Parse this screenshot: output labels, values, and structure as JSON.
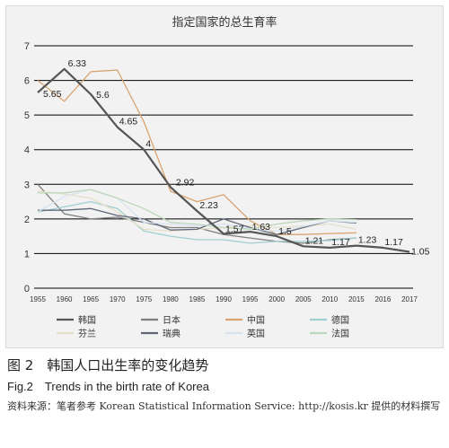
{
  "chart_data": {
    "type": "line",
    "title": "指定国家的总生育率",
    "xlabel": "",
    "ylabel": "",
    "categories": [
      "1955",
      "1960",
      "1965",
      "1970",
      "1975",
      "1980",
      "1985",
      "1990",
      "1995",
      "2000",
      "2005",
      "2010",
      "2015",
      "2016",
      "2017"
    ],
    "ylim": [
      0,
      7
    ],
    "yticks": [
      0,
      1,
      2,
      3,
      4,
      5,
      6,
      7
    ],
    "grid": true,
    "legend_position": "bottom",
    "series": [
      {
        "name": "韩国",
        "color": "#555555",
        "width": 2.2,
        "values": [
          5.65,
          6.33,
          5.6,
          4.65,
          4.0,
          2.92,
          2.23,
          1.57,
          1.63,
          1.5,
          1.21,
          1.17,
          1.23,
          1.17,
          1.05
        ],
        "labels": [
          "5.65",
          "6.33",
          "5.6",
          "4.65",
          "4",
          "2.92",
          "2.23",
          "1.57",
          "1.63",
          "1.5",
          "1.21",
          "1.17",
          "1.23",
          "1.17",
          "1.05"
        ]
      },
      {
        "name": "日本",
        "color": "#7f7f7f",
        "width": 1.3,
        "values": [
          3.0,
          2.15,
          2.0,
          2.05,
          1.9,
          1.75,
          1.75,
          1.55,
          1.45,
          1.35,
          1.3,
          1.4,
          1.45,
          null,
          null
        ]
      },
      {
        "name": "中国",
        "color": "#d9a46f",
        "width": 1.3,
        "values": [
          6.0,
          5.4,
          6.25,
          6.3,
          4.8,
          2.8,
          2.5,
          2.7,
          1.95,
          1.55,
          1.55,
          1.58,
          1.6,
          null,
          null
        ]
      },
      {
        "name": "德国",
        "color": "#9fcfd0",
        "width": 1.3,
        "values": [
          2.2,
          2.35,
          2.5,
          2.3,
          1.65,
          1.5,
          1.4,
          1.4,
          1.3,
          1.35,
          1.35,
          1.38,
          1.45,
          null,
          null
        ]
      },
      {
        "name": "芬兰",
        "color": "#e6dfc8",
        "width": 1.3,
        "values": [
          2.8,
          2.72,
          2.6,
          2.2,
          1.7,
          1.65,
          1.7,
          1.75,
          1.8,
          1.75,
          1.8,
          1.85,
          1.7,
          null,
          null
        ]
      },
      {
        "name": "瑞典",
        "color": "#606878",
        "width": 1.3,
        "values": [
          2.25,
          2.25,
          2.3,
          2.1,
          2.0,
          1.68,
          1.7,
          2.0,
          1.75,
          1.55,
          1.75,
          1.95,
          1.88,
          null,
          null
        ]
      },
      {
        "name": "英国",
        "color": "#d7e2ef",
        "width": 1.3,
        "values": [
          2.2,
          2.65,
          2.85,
          2.6,
          1.9,
          1.85,
          1.8,
          1.85,
          1.72,
          1.65,
          1.78,
          1.95,
          1.9,
          null,
          null
        ]
      },
      {
        "name": "法国",
        "color": "#bcd7bb",
        "width": 1.3,
        "values": [
          2.75,
          2.75,
          2.85,
          2.6,
          2.3,
          1.9,
          1.85,
          1.75,
          1.7,
          1.85,
          1.95,
          2.0,
          1.98,
          null,
          null
        ]
      }
    ]
  },
  "caption": {
    "cn": "图 2　韩国人口出生率的变化趋势",
    "en": "Fig.2　Trends in the birth rate of Korea",
    "source": "资料来源：笔者参考 Korean Statistical Information Service: http://kosis.kr 提供的材料撰写"
  }
}
